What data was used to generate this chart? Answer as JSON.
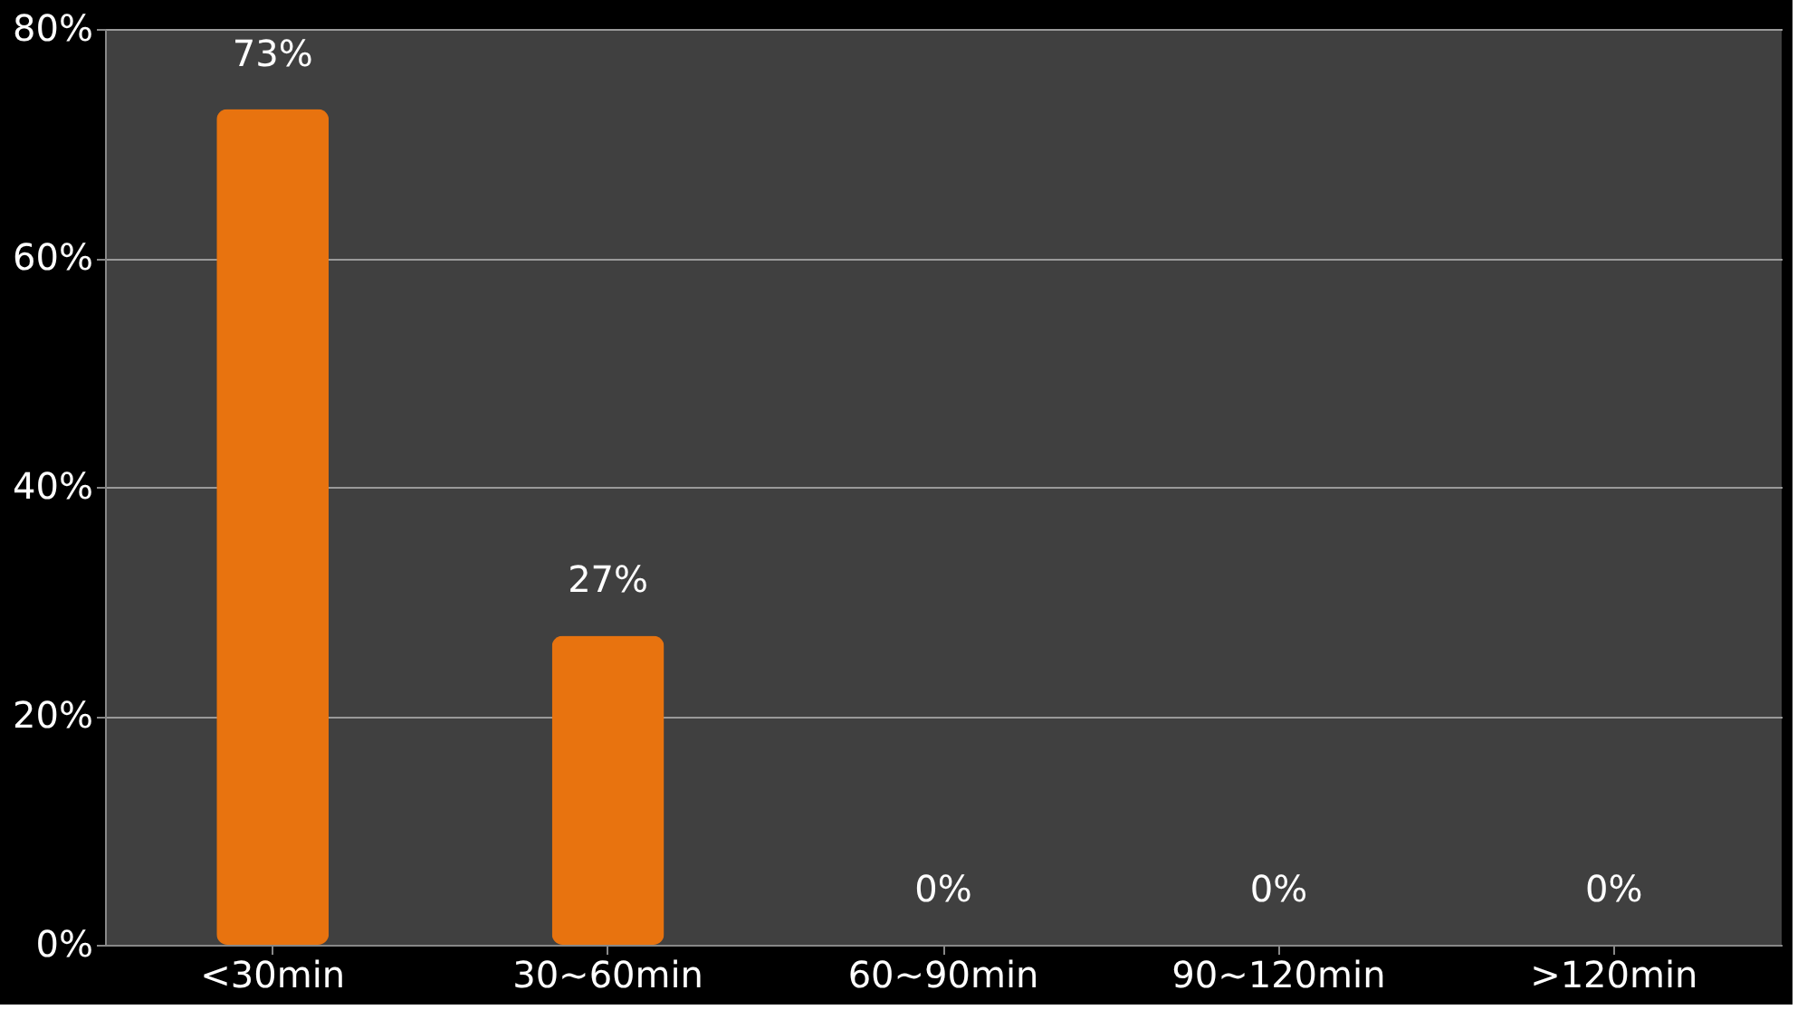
{
  "chart_data": {
    "type": "bar",
    "categories": [
      "<30min",
      "30~60min",
      "60~90min",
      "90~120min",
      ">120min"
    ],
    "values": [
      73,
      27,
      0,
      0,
      0
    ],
    "value_labels": [
      "73%",
      "27%",
      "0%",
      "0%",
      "0%"
    ],
    "color": "#e8730f",
    "ylim": [
      0,
      80
    ],
    "yticks": [
      {
        "value": 0,
        "label": "0%"
      },
      {
        "value": 20,
        "label": "20%"
      },
      {
        "value": 40,
        "label": "40%"
      },
      {
        "value": 60,
        "label": "60%"
      },
      {
        "value": 80,
        "label": "80%"
      }
    ],
    "grid": "y"
  }
}
